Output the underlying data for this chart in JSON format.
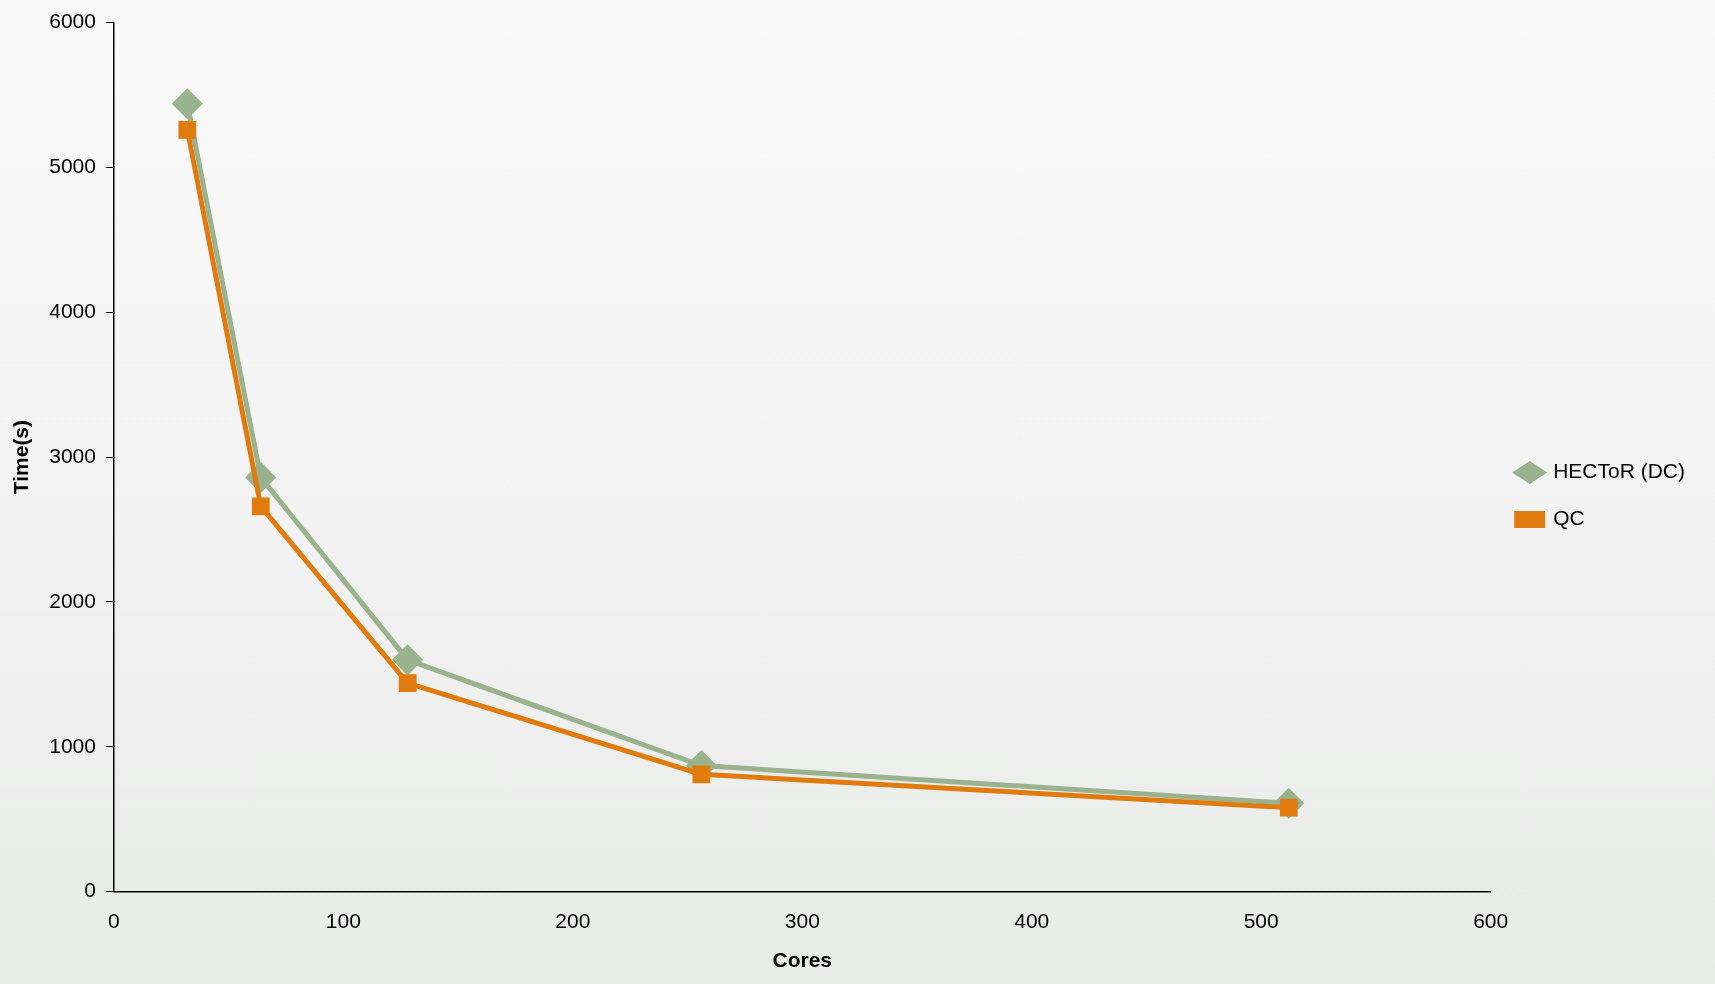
{
  "chart_data": {
    "type": "line",
    "xlabel": "Cores",
    "ylabel": "Time(s)",
    "xlim": [
      0,
      600
    ],
    "xticks": [
      0,
      100,
      200,
      300,
      400,
      500,
      600
    ],
    "ylim": [
      0,
      6000
    ],
    "yticks": [
      0,
      1000,
      2000,
      3000,
      4000,
      5000,
      6000
    ],
    "grid": false,
    "legend": "right",
    "line_style": "solid",
    "x": [
      32,
      64,
      128,
      256,
      512
    ],
    "series": [
      {
        "name": "HECToR (DC)",
        "color": "#9bb28f",
        "marker": "diamond",
        "values": [
          5440,
          2860,
          1600,
          870,
          610
        ]
      },
      {
        "name": "QC",
        "color": "#e07b10",
        "marker": "square",
        "values": [
          5260,
          2660,
          1440,
          810,
          580
        ]
      }
    ]
  }
}
